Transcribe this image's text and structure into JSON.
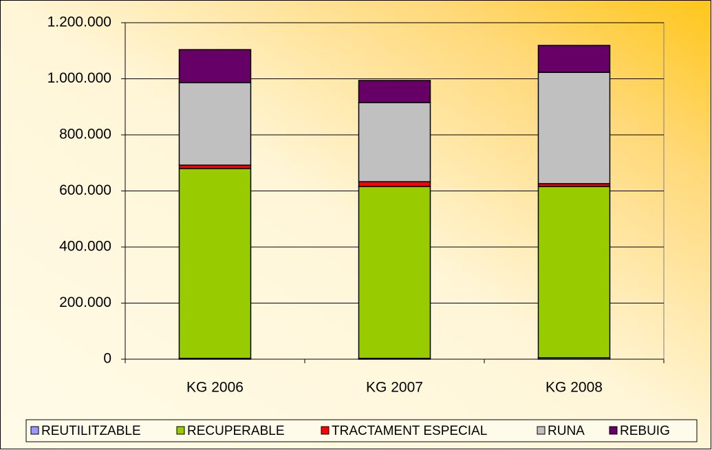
{
  "chart_data": {
    "type": "stacked_bar",
    "categories": [
      "KG 2006",
      "KG 2007",
      "KG 2008"
    ],
    "series": [
      {
        "name": "REUTILITZABLE",
        "color": "#9999ff",
        "values": [
          3000,
          3000,
          5000
        ]
      },
      {
        "name": "RECUPERABLE",
        "color": "#99cc00",
        "values": [
          677000,
          613000,
          611000
        ]
      },
      {
        "name": "TRACTAMENT ESPECIAL",
        "color": "#ff0000",
        "values": [
          12000,
          17000,
          10000
        ]
      },
      {
        "name": "RUNA",
        "color": "#c0c0c0",
        "values": [
          294000,
          282000,
          397000
        ]
      },
      {
        "name": "REBUIG",
        "color": "#660066",
        "values": [
          118000,
          79000,
          96000
        ]
      }
    ],
    "ylim": [
      0,
      1200000
    ],
    "yticks": [
      0,
      {
        "value": 200000,
        "label": "200.000"
      },
      {
        "value": 400000,
        "label": "400.000"
      },
      {
        "value": 600000,
        "label": "600.000"
      },
      {
        "value": 800000,
        "label": "800.000"
      },
      {
        "value": 1000000,
        "label": "1.000.000"
      },
      {
        "value": 1200000,
        "label": "1.200.000"
      }
    ],
    "grid": true,
    "legend": "bottom"
  }
}
